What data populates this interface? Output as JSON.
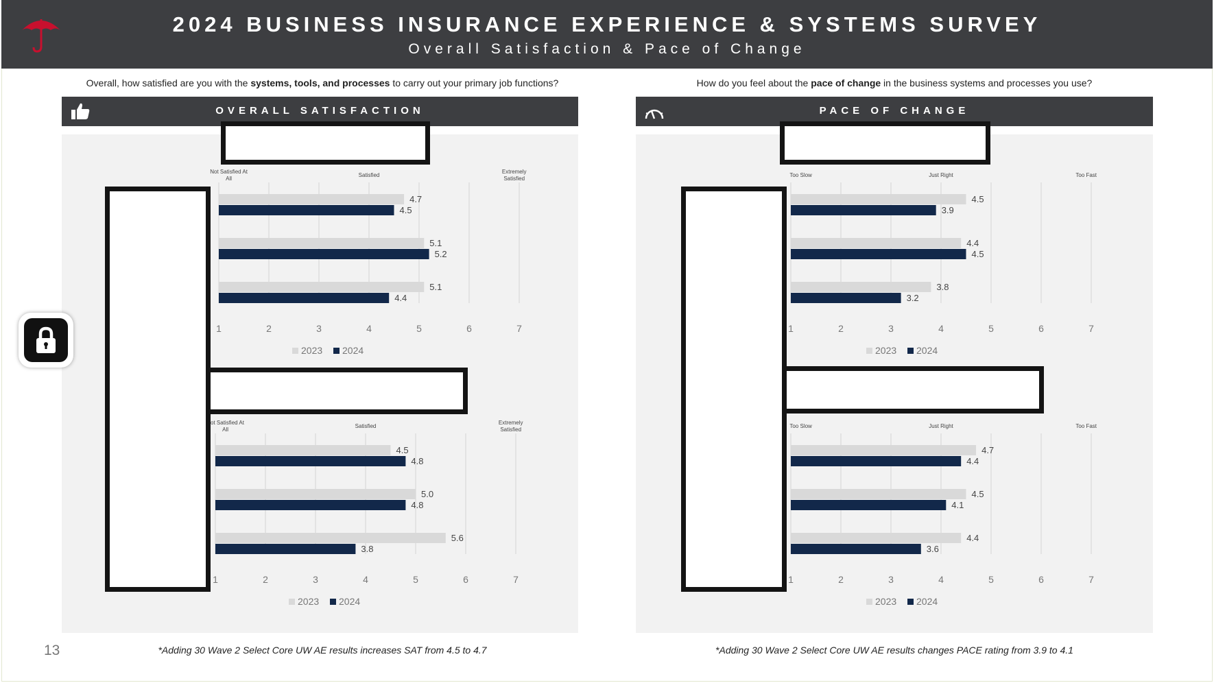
{
  "header": {
    "title": "2024 BUSINESS INSURANCE EXPERIENCE & SYSTEMS SURVEY",
    "subtitle": "Overall Satisfaction & Pace of Change"
  },
  "left": {
    "question_pre": "Overall, how satisfied are you with the ",
    "question_bold": "systems, tools, and processes",
    "question_post": " to carry out your primary job functions?",
    "panel_title": "OVERALL SATISFACTION",
    "footnote": "*Adding 30 Wave 2 Select Core UW AE results increases SAT from 4.5 to 4.7"
  },
  "right": {
    "question_pre": "How do you feel about the ",
    "question_bold": "pace of change",
    "question_post": " in the business systems and processes you use?",
    "panel_title": "PACE OF CHANGE",
    "footnote": "*Adding 30 Wave 2 Select Core UW AE results changes PACE rating from 3.9 to 4.1"
  },
  "page_number": "13",
  "colors": {
    "header_bg": "#3d3e41",
    "series_2023": "#d9d9d9",
    "series_2024": "#12284a",
    "logo_red": "#c8102e"
  },
  "chart_data": [
    {
      "type": "bar",
      "orientation": "horizontal",
      "x_range": [
        1,
        7
      ],
      "ticks": [
        1,
        2,
        3,
        4,
        5,
        6,
        7
      ],
      "scale_labels": [
        {
          "at": 1.2,
          "lines": [
            "Not Satisfied At",
            "All"
          ]
        },
        {
          "at": 4,
          "lines": [
            "Satisfied"
          ]
        },
        {
          "at": 6.9,
          "lines": [
            "Extremely",
            "Satisfied"
          ]
        }
      ],
      "series": [
        {
          "name": "2023",
          "values": [
            4.7,
            5.1,
            5.1
          ]
        },
        {
          "name": "2024",
          "values": [
            4.5,
            5.2,
            4.4
          ]
        }
      ]
    },
    {
      "type": "bar",
      "orientation": "horizontal",
      "x_range": [
        1,
        7
      ],
      "ticks": [
        1,
        2,
        3,
        4,
        5,
        6,
        7
      ],
      "scale_labels": [
        {
          "at": 1.2,
          "lines": [
            "Not Satisfied At",
            "All"
          ]
        },
        {
          "at": 4,
          "lines": [
            "Satisfied"
          ]
        },
        {
          "at": 6.9,
          "lines": [
            "Extremely",
            "Satisfied"
          ]
        }
      ],
      "series": [
        {
          "name": "2023",
          "values": [
            4.5,
            5.0,
            5.6
          ]
        },
        {
          "name": "2024",
          "values": [
            4.8,
            4.8,
            3.8
          ]
        }
      ]
    },
    {
      "type": "bar",
      "orientation": "horizontal",
      "x_range": [
        1,
        7
      ],
      "ticks": [
        1,
        2,
        3,
        4,
        5,
        6,
        7
      ],
      "scale_labels": [
        {
          "at": 1.2,
          "lines": [
            "Too Slow"
          ]
        },
        {
          "at": 4,
          "lines": [
            "Just Right"
          ]
        },
        {
          "at": 6.9,
          "lines": [
            "Too Fast"
          ]
        }
      ],
      "series": [
        {
          "name": "2023",
          "values": [
            4.5,
            4.4,
            3.8
          ]
        },
        {
          "name": "2024",
          "values": [
            3.9,
            4.5,
            3.2
          ]
        }
      ]
    },
    {
      "type": "bar",
      "orientation": "horizontal",
      "x_range": [
        1,
        7
      ],
      "ticks": [
        1,
        2,
        3,
        4,
        5,
        6,
        7
      ],
      "scale_labels": [
        {
          "at": 1.2,
          "lines": [
            "Too Slow"
          ]
        },
        {
          "at": 4,
          "lines": [
            "Just Right"
          ]
        },
        {
          "at": 6.9,
          "lines": [
            "Too Fast"
          ]
        }
      ],
      "series": [
        {
          "name": "2023",
          "values": [
            4.7,
            4.5,
            4.4
          ]
        },
        {
          "name": "2024",
          "values": [
            4.4,
            4.1,
            3.6
          ]
        }
      ]
    }
  ]
}
